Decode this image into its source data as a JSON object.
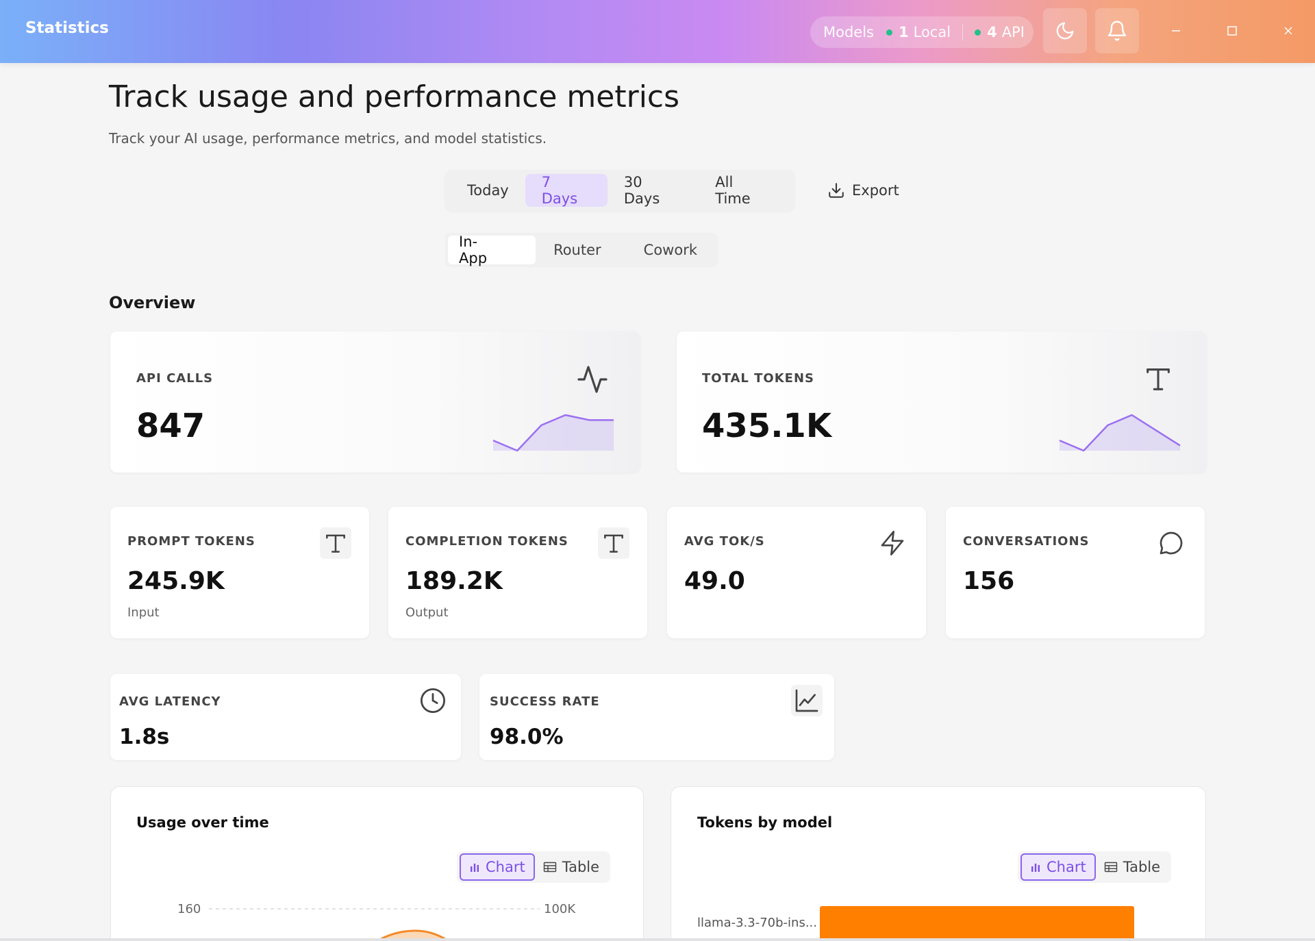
{
  "window": {
    "title": "Statistics"
  },
  "models": {
    "label": "Models",
    "local_count": "1",
    "local_label": "Local",
    "api_count": "4",
    "api_label": "API"
  },
  "header": {
    "title": "Track usage and performance metrics",
    "subtitle": "Track your AI usage, performance metrics, and model statistics."
  },
  "range_tabs": [
    "Today",
    "7 Days",
    "30 Days",
    "All Time"
  ],
  "range_selected": "7 Days",
  "export_label": "Export",
  "source_tabs": [
    "In-App",
    "Router",
    "Cowork"
  ],
  "source_selected": "In-App",
  "overview": {
    "title": "Overview",
    "api_calls": {
      "label": "API CALLS",
      "value": "847",
      "trend": [
        3,
        1,
        6,
        8,
        7,
        7
      ],
      "icon": "activity-icon"
    },
    "total_tokens": {
      "label": "TOTAL TOKENS",
      "value": "435.1K",
      "trend": [
        3,
        1,
        6,
        8,
        5,
        2
      ],
      "icon": "text-icon"
    },
    "prompt_tokens": {
      "label": "PROMPT TOKENS",
      "value": "245.9K",
      "sub": "Input",
      "icon": "text-icon"
    },
    "completion_tokens": {
      "label": "COMPLETION TOKENS",
      "value": "189.2K",
      "sub": "Output",
      "icon": "text-icon"
    },
    "avg_toks": {
      "label": "AVG TOK/S",
      "value": "49.0",
      "icon": "lightning-icon"
    },
    "conversations": {
      "label": "CONVERSATIONS",
      "value": "156",
      "icon": "chat-icon"
    },
    "avg_latency": {
      "label": "AVG LATENCY",
      "value": "1.8s",
      "icon": "clock-icon"
    },
    "success_rate": {
      "label": "SUCCESS RATE",
      "value": "98.0%",
      "icon": "line-chart-icon"
    }
  },
  "usage_panel": {
    "title": "Usage over time",
    "chart_label": "Chart",
    "table_label": "Table",
    "y_left_tick": "160",
    "y_right_tick": "100K"
  },
  "tokens_panel": {
    "title": "Tokens by model",
    "chart_label": "Chart",
    "table_label": "Table",
    "first_model": "llama-3.3-70b-ins..."
  },
  "colors": {
    "accent": "#7c4fe3",
    "orange": "#ff7f00",
    "green_dot": "#22c08a"
  }
}
